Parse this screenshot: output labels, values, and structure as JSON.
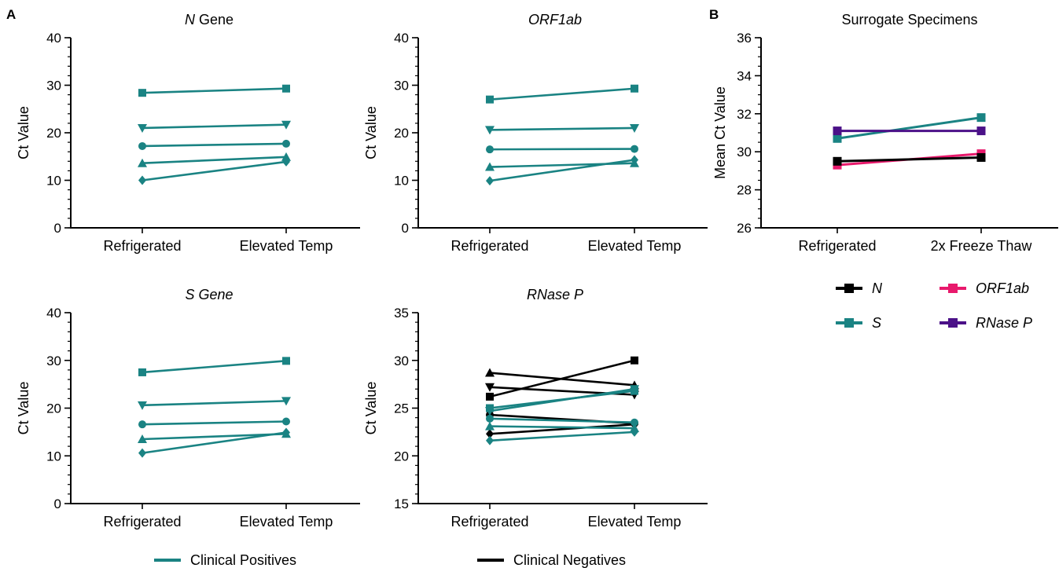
{
  "panel_labels": [
    "A",
    "B"
  ],
  "colors": {
    "clinical_positive": "#1a8383",
    "clinical_negative": "#000000",
    "N": "#000000",
    "S": "#1a8383",
    "ORF1ab": "#e8196c",
    "RNaseP": "#4b1188"
  },
  "legend_bottom": [
    {
      "label": "Clinical Positives",
      "color": "#1a8383"
    },
    {
      "label": "Clinical Negatives",
      "color": "#000000"
    }
  ],
  "chart_data": [
    {
      "id": "n-gene",
      "type": "line",
      "title": "N Gene",
      "title_italic_prefix": "N",
      "title_rest": " Gene",
      "ylabel": "Ct Value",
      "ylim": [
        0,
        40
      ],
      "yticks": [
        0,
        10,
        20,
        30,
        40
      ],
      "minor_step": 2,
      "categories": [
        "Refrigerated",
        "Elevated Temp"
      ],
      "series": [
        {
          "marker": "square",
          "group": "positive",
          "values": [
            28.4,
            29.3
          ]
        },
        {
          "marker": "triangle-down",
          "group": "positive",
          "values": [
            21.0,
            21.7
          ]
        },
        {
          "marker": "circle",
          "group": "positive",
          "values": [
            17.2,
            17.7
          ]
        },
        {
          "marker": "triangle-up",
          "group": "positive",
          "values": [
            13.6,
            14.9
          ]
        },
        {
          "marker": "diamond",
          "group": "positive",
          "values": [
            10.0,
            13.9
          ]
        }
      ]
    },
    {
      "id": "orf1ab",
      "type": "line",
      "title": "ORF1ab",
      "title_italic_prefix": "ORF1ab",
      "title_rest": "",
      "ylabel": "Ct Value",
      "ylim": [
        0,
        40
      ],
      "yticks": [
        0,
        10,
        20,
        30,
        40
      ],
      "minor_step": 2,
      "categories": [
        "Refrigerated",
        "Elevated Temp"
      ],
      "series": [
        {
          "marker": "square",
          "group": "positive",
          "values": [
            27.0,
            29.3
          ]
        },
        {
          "marker": "triangle-down",
          "group": "positive",
          "values": [
            20.6,
            21.0
          ]
        },
        {
          "marker": "circle",
          "group": "positive",
          "values": [
            16.5,
            16.6
          ]
        },
        {
          "marker": "triangle-up",
          "group": "positive",
          "values": [
            12.8,
            13.6
          ]
        },
        {
          "marker": "diamond",
          "group": "positive",
          "values": [
            9.9,
            14.3
          ]
        }
      ]
    },
    {
      "id": "s-gene",
      "type": "line",
      "title": "S Gene",
      "title_italic_prefix": "S Gene",
      "title_rest": "",
      "ylabel": "Ct Value",
      "ylim": [
        0,
        40
      ],
      "yticks": [
        0,
        10,
        20,
        30,
        40
      ],
      "minor_step": 2,
      "categories": [
        "Refrigerated",
        "Elevated Temp"
      ],
      "series": [
        {
          "marker": "square",
          "group": "positive",
          "values": [
            27.5,
            29.9
          ]
        },
        {
          "marker": "triangle-down",
          "group": "positive",
          "values": [
            20.6,
            21.5
          ]
        },
        {
          "marker": "circle",
          "group": "positive",
          "values": [
            16.6,
            17.2
          ]
        },
        {
          "marker": "triangle-up",
          "group": "positive",
          "values": [
            13.5,
            14.6
          ]
        },
        {
          "marker": "diamond",
          "group": "positive",
          "values": [
            10.6,
            14.9
          ]
        }
      ]
    },
    {
      "id": "rnase-p",
      "type": "line",
      "title": "RNase P",
      "title_italic_prefix": "RNase P",
      "title_rest": "",
      "ylabel": "Ct Value",
      "ylim": [
        15,
        35
      ],
      "yticks": [
        15,
        20,
        25,
        30,
        35
      ],
      "minor_step": 1,
      "categories": [
        "Refrigerated",
        "Elevated Temp"
      ],
      "series": [
        {
          "marker": "triangle-up",
          "group": "negative",
          "values": [
            28.7,
            27.4
          ]
        },
        {
          "marker": "triangle-down",
          "group": "negative",
          "values": [
            27.2,
            26.4
          ]
        },
        {
          "marker": "square",
          "group": "negative",
          "values": [
            26.2,
            30.0
          ]
        },
        {
          "marker": "circle",
          "group": "negative",
          "values": [
            24.3,
            23.4
          ]
        },
        {
          "marker": "diamond",
          "group": "negative",
          "values": [
            22.3,
            23.3
          ]
        },
        {
          "marker": "square",
          "group": "positive",
          "values": [
            25.0,
            26.8
          ]
        },
        {
          "marker": "triangle-down",
          "group": "positive",
          "values": [
            24.7,
            27.0
          ]
        },
        {
          "marker": "circle",
          "group": "positive",
          "values": [
            23.9,
            23.5
          ]
        },
        {
          "marker": "triangle-up",
          "group": "positive",
          "values": [
            23.1,
            22.9
          ]
        },
        {
          "marker": "diamond",
          "group": "positive",
          "values": [
            21.6,
            22.5
          ]
        }
      ]
    },
    {
      "id": "surrogate",
      "type": "line",
      "title": "Surrogate Specimens",
      "title_italic_prefix": "",
      "title_rest": "Surrogate Specimens",
      "ylabel": "Mean Ct Value",
      "ylim": [
        26,
        36
      ],
      "yticks": [
        26,
        28,
        30,
        32,
        34,
        36
      ],
      "minor_step": 0.5,
      "categories": [
        "Refrigerated",
        "2x Freeze Thaw"
      ],
      "series": [
        {
          "name": "S",
          "marker": "square",
          "color": "#1a8383",
          "values": [
            30.7,
            31.8
          ]
        },
        {
          "name": "RNase P",
          "marker": "square",
          "color": "#4b1188",
          "values": [
            31.1,
            31.1
          ]
        },
        {
          "name": "ORF1ab",
          "marker": "square",
          "color": "#e8196c",
          "values": [
            29.3,
            29.9
          ]
        },
        {
          "name": "N",
          "marker": "square",
          "color": "#000000",
          "values": [
            29.5,
            29.7
          ]
        }
      ],
      "legend": [
        {
          "label": "N",
          "color": "#000000"
        },
        {
          "label": "ORF1ab",
          "color": "#e8196c"
        },
        {
          "label": "S",
          "color": "#1a8383"
        },
        {
          "label": "RNase P",
          "color": "#4b1188"
        }
      ]
    }
  ]
}
